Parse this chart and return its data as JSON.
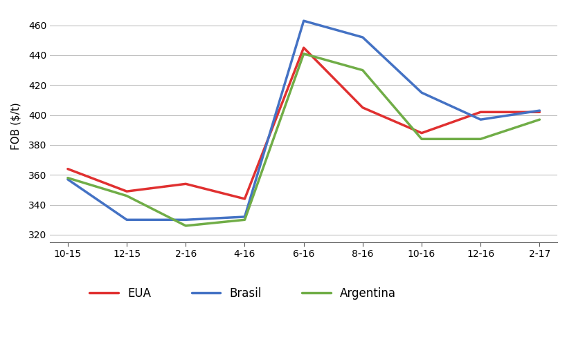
{
  "x_labels": [
    "10-15",
    "12-15",
    "2-16",
    "4-16",
    "6-16",
    "8-16",
    "10-16",
    "12-16",
    "2-17"
  ],
  "EUA": [
    364,
    349,
    354,
    344,
    445,
    405,
    388,
    402,
    402
  ],
  "Brasil": [
    357,
    330,
    330,
    332,
    463,
    452,
    415,
    397,
    403
  ],
  "Argentina": [
    358,
    346,
    326,
    330,
    441,
    430,
    384,
    384,
    397
  ],
  "colors": {
    "EUA": "#e03030",
    "Brasil": "#4472c4",
    "Argentina": "#70ad47"
  },
  "ylabel": "FOB ($/t)",
  "ylim": [
    315,
    470
  ],
  "yticks": [
    320,
    340,
    360,
    380,
    400,
    420,
    440,
    460
  ],
  "linewidth": 2.5,
  "legend_labels": [
    "EUA",
    "Brasil",
    "Argentina"
  ],
  "background_color": "#ffffff",
  "grid_color": "#c0c0c0"
}
